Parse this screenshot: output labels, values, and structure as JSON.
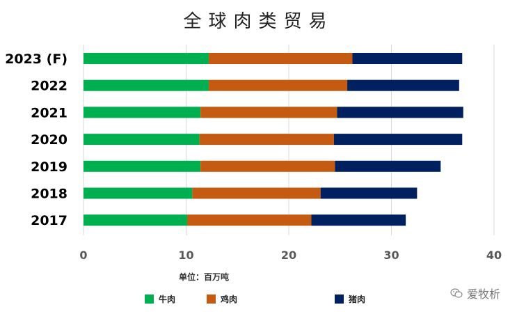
{
  "chart_data": {
    "type": "bar",
    "orientation": "horizontal",
    "stacked": true,
    "title": "全球肉类贸易",
    "unit_label": "单位：百万吨",
    "categories": [
      "2023 (F)",
      "2022",
      "2021",
      "2020",
      "2019",
      "2018",
      "2017"
    ],
    "series": [
      {
        "name": "牛肉",
        "color": "#00B050",
        "values": [
          12.2,
          12.2,
          11.4,
          11.3,
          11.4,
          10.6,
          10.1
        ]
      },
      {
        "name": "鸡肉",
        "color": "#C55A11",
        "values": [
          14.0,
          13.5,
          13.3,
          13.1,
          13.1,
          12.5,
          12.1
        ]
      },
      {
        "name": "猪肉",
        "color": "#002060",
        "values": [
          10.7,
          10.9,
          12.3,
          12.5,
          10.3,
          9.4,
          9.2
        ]
      }
    ],
    "xlim": [
      0,
      40
    ],
    "xticks": [
      "0",
      "10",
      "20",
      "30",
      "40"
    ],
    "grid": true,
    "legend_position": "bottom"
  },
  "watermark": {
    "text": "爱牧析",
    "icon": "wechat-icon"
  }
}
